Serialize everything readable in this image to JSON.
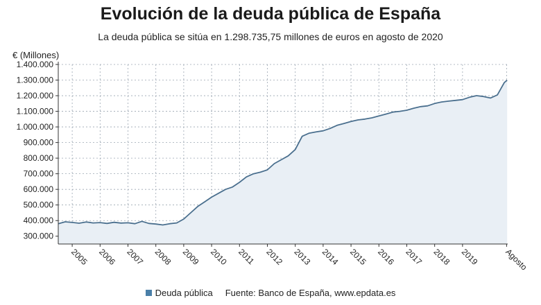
{
  "title": "Evolución de la deuda pública de España",
  "subtitle": "La deuda pública se sitúa en 1.298.735,75 millones de euros en agosto de 2020",
  "legend": {
    "series_label": "Deuda pública",
    "source": "Fuente: Banco de España, www.epdata.es"
  },
  "colors": {
    "line": "#4a6f8e",
    "area": "#e9eff5",
    "grid": "#9aa5b1",
    "axis": "#333333"
  },
  "chart_data": {
    "type": "area",
    "title": "Evolución de la deuda pública de España",
    "ylabel": "€ (Millones)",
    "xlabel": "",
    "ylim": [
      250000,
      1400000
    ],
    "yticks": [
      300000,
      400000,
      500000,
      600000,
      700000,
      800000,
      900000,
      1000000,
      1100000,
      1200000,
      1300000,
      1400000
    ],
    "ytick_labels": [
      "300.000",
      "400.000",
      "500.000",
      "600.000",
      "700.000",
      "800.000",
      "900.000",
      "1.000.000",
      "1.100.000",
      "1.200.000",
      "1.300.000",
      "1.400.000"
    ],
    "xlim": [
      2004.5,
      2020.62
    ],
    "xtick_labels": [
      "2005",
      "2006",
      "2007",
      "2008",
      "2009",
      "2010",
      "2011",
      "2012",
      "2013",
      "2014",
      "2015",
      "2016",
      "2017",
      "2018",
      "2019",
      "Agosto"
    ],
    "xtick_positions": [
      2005,
      2006,
      2007,
      2008,
      2009,
      2010,
      2011,
      2012,
      2013,
      2014,
      2015,
      2016,
      2017,
      2018,
      2019,
      2020.58
    ],
    "series": [
      {
        "name": "Deuda pública",
        "x": [
          2004.5,
          2004.75,
          2005.0,
          2005.25,
          2005.5,
          2005.75,
          2006.0,
          2006.25,
          2006.5,
          2006.75,
          2007.0,
          2007.25,
          2007.5,
          2007.75,
          2008.0,
          2008.25,
          2008.5,
          2008.75,
          2009.0,
          2009.25,
          2009.5,
          2009.75,
          2010.0,
          2010.25,
          2010.5,
          2010.75,
          2011.0,
          2011.25,
          2011.5,
          2011.75,
          2012.0,
          2012.25,
          2012.5,
          2012.75,
          2013.0,
          2013.25,
          2013.5,
          2013.75,
          2014.0,
          2014.25,
          2014.5,
          2014.75,
          2015.0,
          2015.25,
          2015.5,
          2015.75,
          2016.0,
          2016.25,
          2016.5,
          2016.75,
          2017.0,
          2017.25,
          2017.5,
          2017.75,
          2018.0,
          2018.25,
          2018.5,
          2018.75,
          2019.0,
          2019.25,
          2019.5,
          2019.75,
          2020.0,
          2020.25,
          2020.5,
          2020.6
        ],
        "values": [
          380000,
          392000,
          388000,
          383000,
          391000,
          385000,
          387000,
          382000,
          389000,
          384000,
          386000,
          380000,
          395000,
          382000,
          378000,
          372000,
          380000,
          385000,
          410000,
          450000,
          490000,
          520000,
          550000,
          575000,
          600000,
          615000,
          645000,
          680000,
          700000,
          710000,
          725000,
          765000,
          790000,
          815000,
          855000,
          940000,
          960000,
          968000,
          975000,
          990000,
          1010000,
          1022000,
          1035000,
          1045000,
          1050000,
          1058000,
          1070000,
          1082000,
          1095000,
          1100000,
          1107000,
          1120000,
          1130000,
          1135000,
          1150000,
          1160000,
          1165000,
          1170000,
          1175000,
          1190000,
          1200000,
          1195000,
          1185000,
          1205000,
          1285000,
          1298735.75
        ]
      }
    ]
  }
}
